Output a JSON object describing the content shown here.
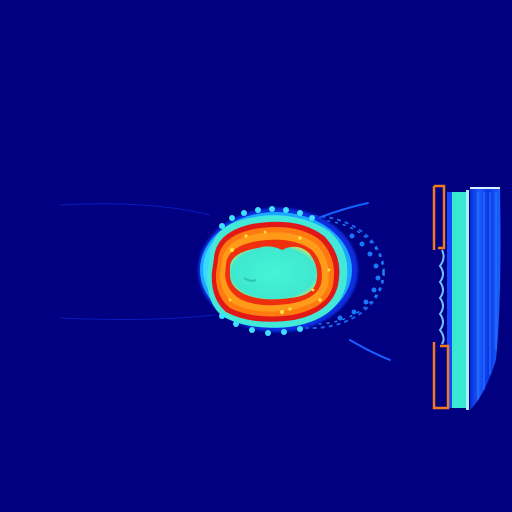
{
  "image": {
    "kind": "false-color cross-sectional scan (jet colormap)",
    "colormap": "jet",
    "colors": {
      "background": "#000080",
      "low": "#0000ff",
      "mid_low": "#1e90ff",
      "mid": "#33ddcc",
      "cyan_core": "#40f0d0",
      "orange": "#ff7a10",
      "red": "#e41010",
      "yellow": "#ffd000",
      "white_edge": "#ddeeff",
      "stand_orange": "#f07a20"
    }
  }
}
